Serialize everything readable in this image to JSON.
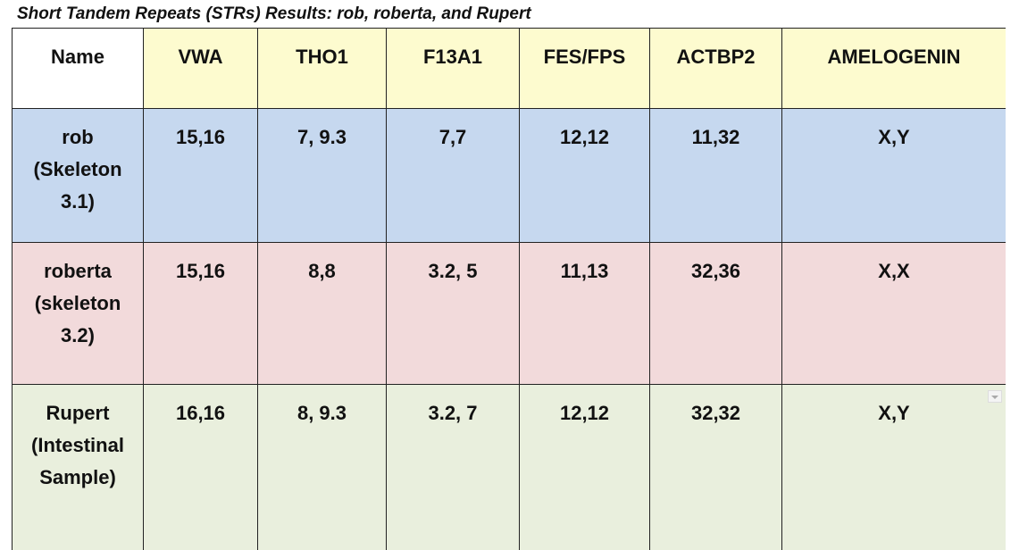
{
  "title": "Short Tandem Repeats (STRs) Results: rob, roberta, and Rupert",
  "table": {
    "header": [
      "Name",
      "VWA",
      "THO1",
      "F13A1",
      "FES/FPS",
      "ACTBP2",
      "AMELOGENIN"
    ],
    "rows": [
      [
        "rob (Skeleton 3.1)",
        "15,16",
        "7, 9.3",
        "7,7",
        "12,12",
        "11,32",
        "X,Y"
      ],
      [
        "roberta (skeleton 3.2)",
        "15,16",
        "8,8",
        "3.2, 5",
        "11,13",
        "32,36",
        "X,X"
      ],
      [
        "Rupert (Intestinal Sample)",
        "16,16",
        "8, 9.3",
        "3.2, 7",
        "12,12",
        "32,32",
        "X,Y"
      ]
    ]
  }
}
